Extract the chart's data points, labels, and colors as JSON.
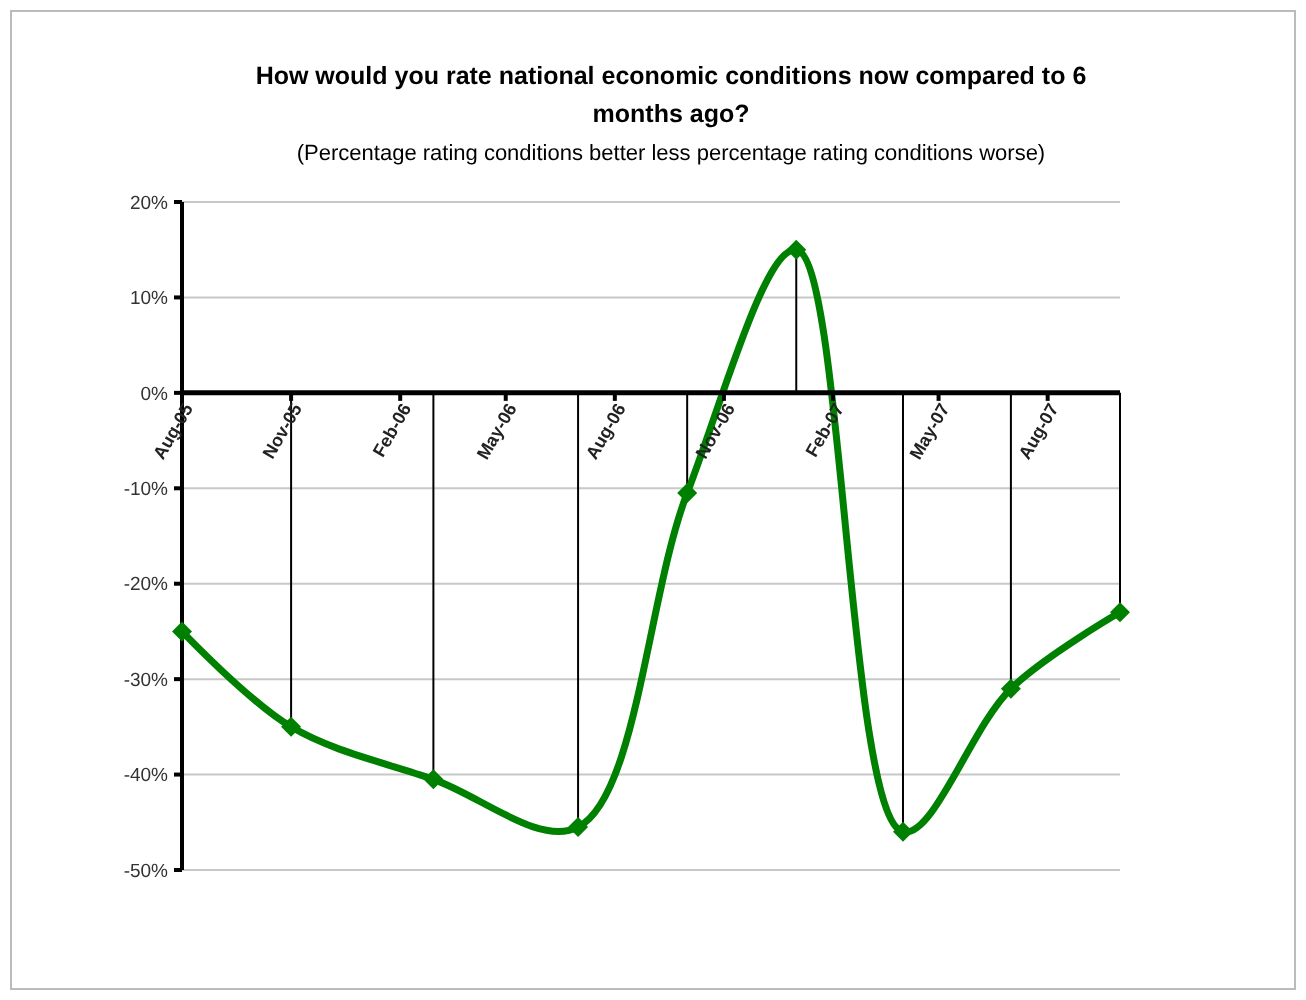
{
  "chart_data": {
    "type": "line",
    "title": "How would you rate national economic conditions now compared to 6 months ago?",
    "subtitle": "(Percentage rating conditions better less percentage rating conditions worse)",
    "x": [
      "2005-08",
      "2005-11",
      "2006-03",
      "2006-07",
      "2006-10",
      "2007-01",
      "2007-04",
      "2007-07",
      "2007-10"
    ],
    "series": [
      {
        "color": "#008000",
        "values": [
          -25,
          -35,
          -40.5,
          -45.5,
          -10.5,
          15,
          -46,
          -31,
          -23
        ],
        "errors": [
          [
            -25,
            0
          ],
          [
            -35,
            0
          ],
          [
            -40.5,
            0
          ],
          [
            -45.5,
            0
          ],
          [
            -10.5,
            0
          ],
          [
            0,
            15
          ],
          [
            -46,
            0
          ],
          [
            -31,
            0
          ],
          [
            -23,
            0
          ]
        ]
      }
    ],
    "xlim": [
      "2005-08",
      "2007-10"
    ],
    "xticks": [
      {
        "value": "2005-08",
        "label": "Aug-05"
      },
      {
        "value": "2005-11",
        "label": "Nov-05"
      },
      {
        "value": "2006-02",
        "label": "Feb-06"
      },
      {
        "value": "2006-05",
        "label": "May-06"
      },
      {
        "value": "2006-08",
        "label": "Aug-06"
      },
      {
        "value": "2006-11",
        "label": "Nov-06"
      },
      {
        "value": "2007-02",
        "label": "Feb-07"
      },
      {
        "value": "2007-05",
        "label": "May-07"
      },
      {
        "value": "2007-08",
        "label": "Aug-07"
      }
    ],
    "ylim": [
      -50,
      20
    ],
    "yticks": [
      {
        "value": -50,
        "label": "-50%"
      },
      {
        "value": -40,
        "label": "-40%"
      },
      {
        "value": -30,
        "label": "-30%"
      },
      {
        "value": -20,
        "label": "-20%"
      },
      {
        "value": -10,
        "label": "-10%"
      },
      {
        "value": 0,
        "label": "0%"
      },
      {
        "value": 10,
        "label": "10%"
      },
      {
        "value": 20,
        "label": "20%"
      }
    ],
    "grid": "y",
    "marker": "diamond",
    "line_style": "solid"
  }
}
